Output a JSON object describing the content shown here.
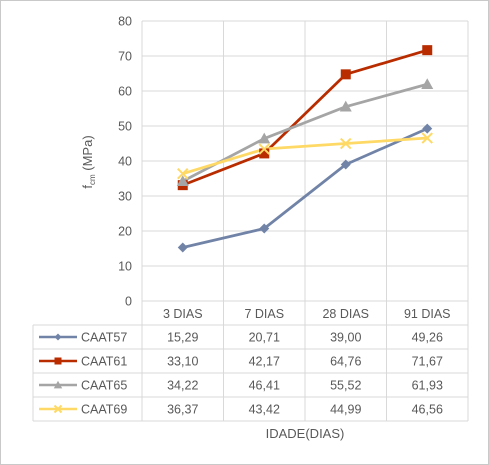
{
  "chart_data": {
    "type": "line",
    "title": "",
    "ylabel_main": "f",
    "ylabel_sub": "cm",
    "ylabel_unit": " (MPa)",
    "xlabel": "IDADE(DIAS)",
    "ylim": [
      0,
      80
    ],
    "yticks": [
      0,
      10,
      20,
      30,
      40,
      50,
      60,
      70,
      80
    ],
    "grid": true,
    "legend": "data-table-left",
    "categories": [
      "3 DIAS",
      "7 DIAS",
      "28 DIAS",
      "91 DIAS"
    ],
    "series": [
      {
        "name": "CAAT57",
        "values": [
          15.29,
          20.71,
          39.0,
          49.26
        ],
        "labels": [
          "15,29",
          "20,71",
          "39,00",
          "49,26"
        ],
        "color": "#7184A8",
        "marker": "diamond"
      },
      {
        "name": "CAAT61",
        "values": [
          33.1,
          42.17,
          64.76,
          71.67
        ],
        "labels": [
          "33,10",
          "42,17",
          "64,76",
          "71,67"
        ],
        "color": "#B82C00",
        "marker": "square"
      },
      {
        "name": "CAAT65",
        "values": [
          34.22,
          46.41,
          55.52,
          61.93
        ],
        "labels": [
          "34,22",
          "46,41",
          "55,52",
          "61,93"
        ],
        "color": "#A5A5A5",
        "marker": "triangle"
      },
      {
        "name": "CAAT69",
        "values": [
          36.37,
          43.42,
          44.99,
          46.56
        ],
        "labels": [
          "36,37",
          "43,42",
          "44,99",
          "46,56"
        ],
        "color": "#FFD966",
        "marker": "x"
      }
    ]
  }
}
